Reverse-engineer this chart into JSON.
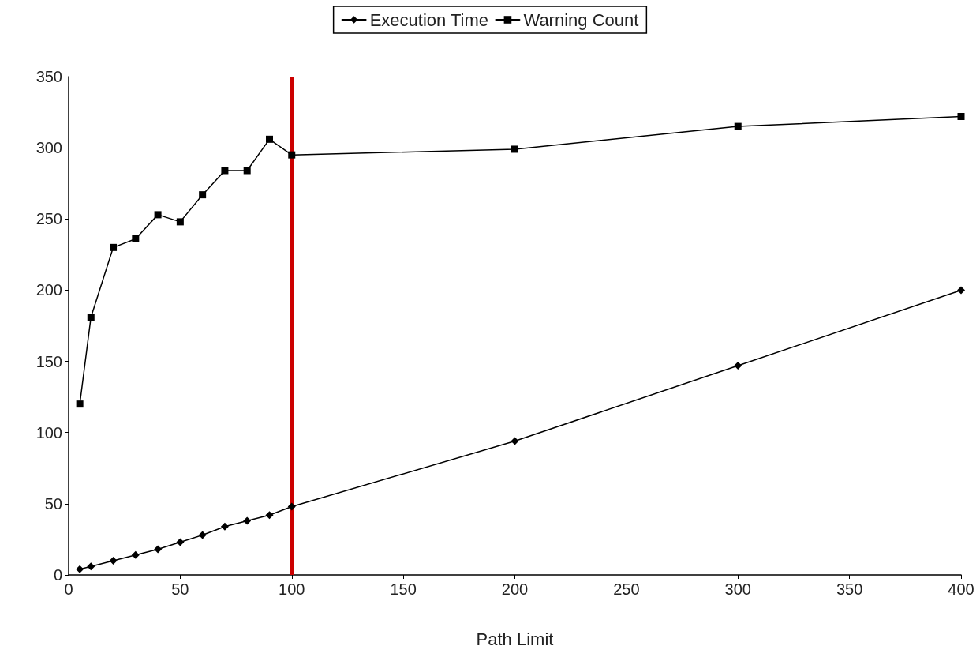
{
  "chart_data": {
    "type": "line",
    "xlabel": "Path Limit",
    "x": [
      5,
      10,
      20,
      30,
      40,
      50,
      60,
      70,
      80,
      90,
      100,
      200,
      300,
      400
    ],
    "series": [
      {
        "name": "Execution Time",
        "color": "#000000",
        "marker": "diamond",
        "values": [
          4,
          6,
          10,
          14,
          18,
          23,
          28,
          34,
          38,
          42,
          48,
          94,
          147,
          200
        ]
      },
      {
        "name": "Warning Count",
        "color": "#000000",
        "marker": "square",
        "values": [
          120,
          181,
          230,
          236,
          253,
          248,
          267,
          284,
          284,
          306,
          295,
          299,
          315,
          322
        ]
      }
    ],
    "xlim": [
      0,
      400
    ],
    "xticks": [
      0,
      50,
      100,
      150,
      200,
      250,
      300,
      350,
      400
    ],
    "ylim": [
      0,
      350
    ],
    "yticks": [
      0,
      50,
      100,
      150,
      200,
      250,
      300,
      350
    ],
    "ref_lines": [
      {
        "axis": "x",
        "value": 100,
        "color": "#cc0000",
        "line_style": "solid"
      }
    ],
    "grid": false,
    "legend": "top",
    "line_style": "solid"
  }
}
